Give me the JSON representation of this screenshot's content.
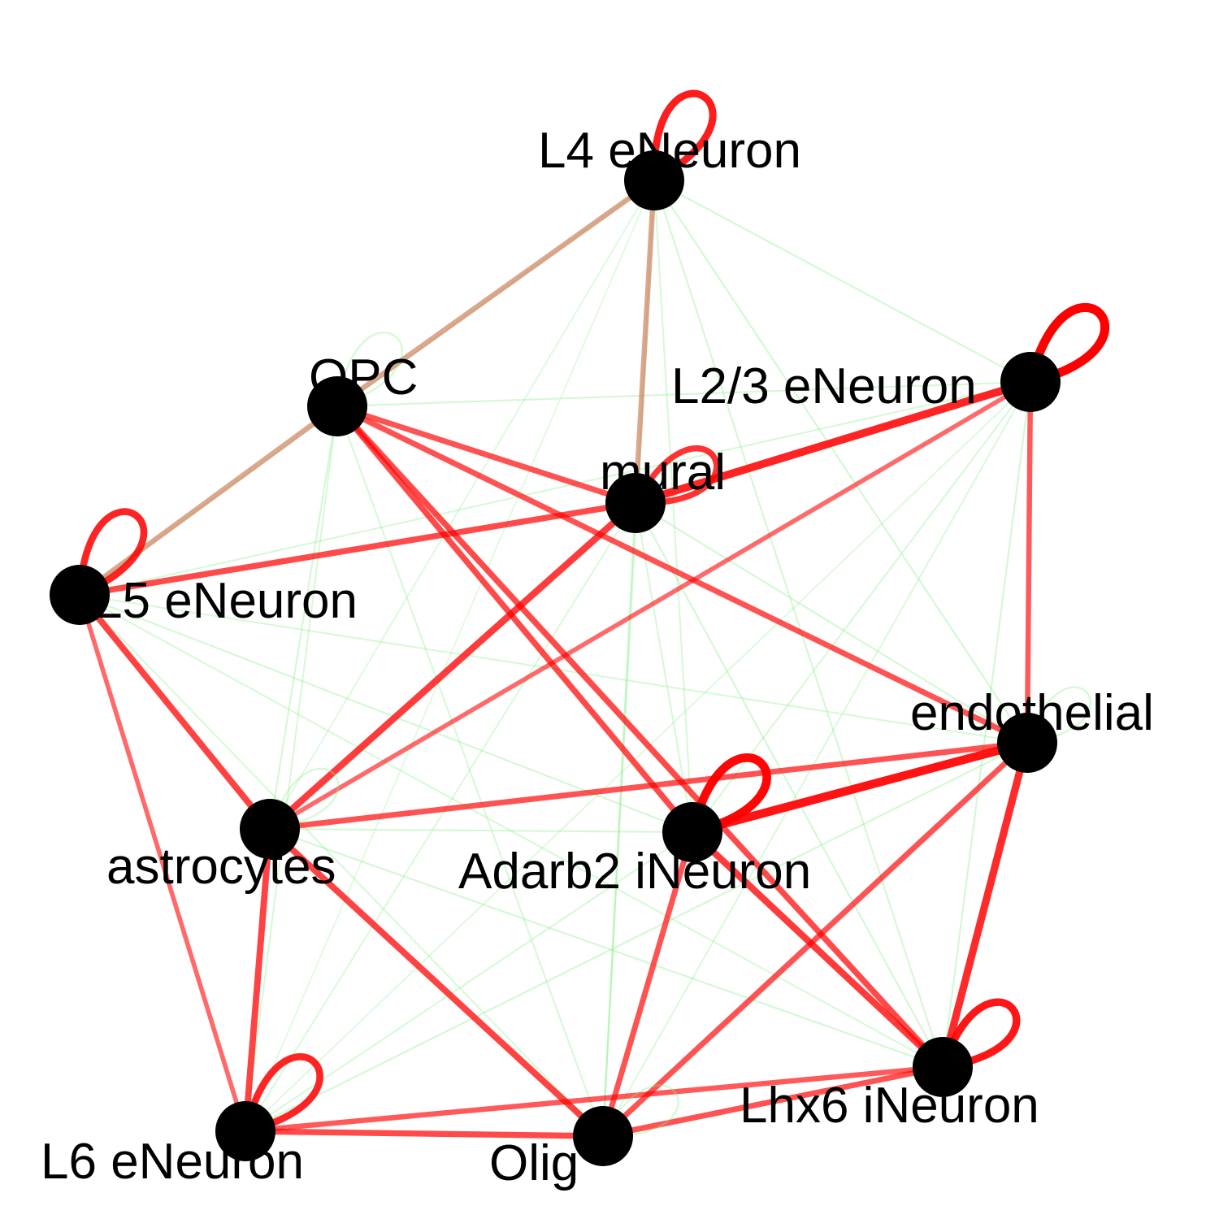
{
  "colors": {
    "background": "#ffffff",
    "node": "#000000",
    "positive_edge": "#ff0000",
    "weak_edge": "#90ee90",
    "mixed_edge": "#c87850"
  },
  "nodes": [
    {
      "id": "L4",
      "label": "L4 eNeuron"
    },
    {
      "id": "L23",
      "label": "L2/3 eNeuron"
    },
    {
      "id": "OPC",
      "label": "OPC"
    },
    {
      "id": "mural",
      "label": "mural"
    },
    {
      "id": "L5",
      "label": "L5 eNeuron"
    },
    {
      "id": "endo",
      "label": "endothelial"
    },
    {
      "id": "astro",
      "label": "astrocytes"
    },
    {
      "id": "Adarb2",
      "label": "Adarb2 iNeuron"
    },
    {
      "id": "Lhx6",
      "label": "Lhx6 iNeuron"
    },
    {
      "id": "L6",
      "label": "L6 eNeuron"
    },
    {
      "id": "Olig",
      "label": "Olig"
    }
  ],
  "edges": [
    {
      "source": "L4",
      "target": "OPC",
      "kind": "mixed",
      "strength": 0.5
    },
    {
      "source": "L4",
      "target": "mural",
      "kind": "mixed",
      "strength": 0.5
    },
    {
      "source": "OPC",
      "target": "L5",
      "kind": "mixed",
      "strength": 0.5
    },
    {
      "source": "L23",
      "target": "mural",
      "kind": "positive",
      "strength": 0.85
    },
    {
      "source": "L23",
      "target": "astro",
      "kind": "positive",
      "strength": 0.4
    },
    {
      "source": "L23",
      "target": "endo",
      "kind": "positive",
      "strength": 0.5
    },
    {
      "source": "OPC",
      "target": "mural",
      "kind": "positive",
      "strength": 0.55
    },
    {
      "source": "OPC",
      "target": "endo",
      "kind": "positive",
      "strength": 0.55
    },
    {
      "source": "OPC",
      "target": "Adarb2",
      "kind": "positive",
      "strength": 0.6
    },
    {
      "source": "OPC",
      "target": "Lhx6",
      "kind": "positive",
      "strength": 0.6
    },
    {
      "source": "mural",
      "target": "L5",
      "kind": "positive",
      "strength": 0.6
    },
    {
      "source": "mural",
      "target": "astro",
      "kind": "positive",
      "strength": 0.7
    },
    {
      "source": "L5",
      "target": "astro",
      "kind": "positive",
      "strength": 0.65
    },
    {
      "source": "L5",
      "target": "L6",
      "kind": "positive",
      "strength": 0.4
    },
    {
      "source": "endo",
      "target": "astro",
      "kind": "positive",
      "strength": 0.55
    },
    {
      "source": "endo",
      "target": "Adarb2",
      "kind": "positive",
      "strength": 0.95
    },
    {
      "source": "endo",
      "target": "Lhx6",
      "kind": "positive",
      "strength": 0.8
    },
    {
      "source": "endo",
      "target": "Olig",
      "kind": "positive",
      "strength": 0.55
    },
    {
      "source": "astro",
      "target": "L6",
      "kind": "positive",
      "strength": 0.65
    },
    {
      "source": "astro",
      "target": "Olig",
      "kind": "positive",
      "strength": 0.65
    },
    {
      "source": "Adarb2",
      "target": "Lhx6",
      "kind": "positive",
      "strength": 0.7
    },
    {
      "source": "Adarb2",
      "target": "Olig",
      "kind": "positive",
      "strength": 0.55
    },
    {
      "source": "Lhx6",
      "target": "L6",
      "kind": "positive",
      "strength": 0.5
    },
    {
      "source": "Lhx6",
      "target": "Olig",
      "kind": "positive",
      "strength": 0.55
    },
    {
      "source": "L6",
      "target": "Olig",
      "kind": "positive",
      "strength": 0.6
    },
    {
      "source": "L4",
      "target": "L23",
      "kind": "weak",
      "strength": 0.3
    },
    {
      "source": "L4",
      "target": "L5",
      "kind": "weak",
      "strength": 0.1
    },
    {
      "source": "L4",
      "target": "endo",
      "kind": "weak",
      "strength": 0.3
    },
    {
      "source": "L4",
      "target": "astro",
      "kind": "weak",
      "strength": 0.15
    },
    {
      "source": "L4",
      "target": "Adarb2",
      "kind": "weak",
      "strength": 0.25
    },
    {
      "source": "L4",
      "target": "Lhx6",
      "kind": "weak",
      "strength": 0.3
    },
    {
      "source": "L4",
      "target": "Olig",
      "kind": "weak",
      "strength": 0.2
    },
    {
      "source": "L4",
      "target": "L6",
      "kind": "weak",
      "strength": 0.1
    },
    {
      "source": "OPC",
      "target": "L23",
      "kind": "weak",
      "strength": 0.3
    },
    {
      "source": "OPC",
      "target": "astro",
      "kind": "weak",
      "strength": 0.3
    },
    {
      "source": "OPC",
      "target": "L6",
      "kind": "weak",
      "strength": 0.25
    },
    {
      "source": "OPC",
      "target": "Olig",
      "kind": "weak",
      "strength": 0.25
    },
    {
      "source": "mural",
      "target": "endo",
      "kind": "weak",
      "strength": 0.3
    },
    {
      "source": "mural",
      "target": "Olig",
      "kind": "weak",
      "strength": 0.45
    },
    {
      "source": "mural",
      "target": "Adarb2",
      "kind": "weak",
      "strength": 0.25
    },
    {
      "source": "mural",
      "target": "Lhx6",
      "kind": "weak",
      "strength": 0.3
    },
    {
      "source": "mural",
      "target": "L6",
      "kind": "weak",
      "strength": 0.2
    },
    {
      "source": "L5",
      "target": "endo",
      "kind": "weak",
      "strength": 0.25
    },
    {
      "source": "L5",
      "target": "Adarb2",
      "kind": "weak",
      "strength": 0.3
    },
    {
      "source": "L5",
      "target": "Lhx6",
      "kind": "weak",
      "strength": 0.25
    },
    {
      "source": "L5",
      "target": "Olig",
      "kind": "weak",
      "strength": 0.25
    },
    {
      "source": "L23",
      "target": "Adarb2",
      "kind": "weak",
      "strength": 0.25
    },
    {
      "source": "L23",
      "target": "Lhx6",
      "kind": "weak",
      "strength": 0.3
    },
    {
      "source": "L23",
      "target": "L5",
      "kind": "weak",
      "strength": 0.25
    },
    {
      "source": "L23",
      "target": "L6",
      "kind": "weak",
      "strength": 0.15
    },
    {
      "source": "L23",
      "target": "Olig",
      "kind": "weak",
      "strength": 0.2
    },
    {
      "source": "astro",
      "target": "Adarb2",
      "kind": "weak",
      "strength": 0.3
    },
    {
      "source": "astro",
      "target": "Lhx6",
      "kind": "weak",
      "strength": 0.3
    },
    {
      "source": "Adarb2",
      "target": "L6",
      "kind": "weak",
      "strength": 0.25
    },
    {
      "source": "endo",
      "target": "L6",
      "kind": "weak",
      "strength": 0.3
    }
  ],
  "self_loops": [
    {
      "node": "L4",
      "kind": "positive",
      "strength": 0.75
    },
    {
      "node": "L23",
      "kind": "positive",
      "strength": 1.0
    },
    {
      "node": "L5",
      "kind": "positive",
      "strength": 0.7
    },
    {
      "node": "Adarb2",
      "kind": "positive",
      "strength": 0.95
    },
    {
      "node": "Lhx6",
      "kind": "positive",
      "strength": 0.8
    },
    {
      "node": "L6",
      "kind": "positive",
      "strength": 0.7
    },
    {
      "node": "OPC",
      "kind": "weak",
      "strength": 0.3
    },
    {
      "node": "mural",
      "kind": "positive",
      "strength": 0.55
    },
    {
      "node": "endo",
      "kind": "weak",
      "strength": 0.3
    },
    {
      "node": "astro",
      "kind": "weak",
      "strength": 0.3
    },
    {
      "node": "Olig",
      "kind": "weak",
      "strength": 0.3
    }
  ]
}
